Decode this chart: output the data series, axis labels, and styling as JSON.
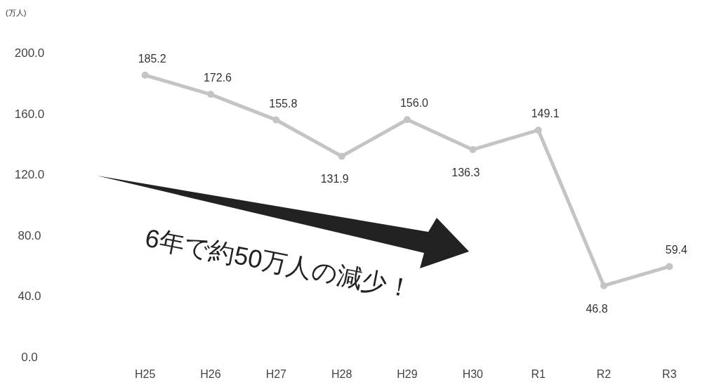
{
  "chart_data": {
    "type": "line",
    "ylabel": "(万人)",
    "categories": [
      "H25",
      "H26",
      "H27",
      "H28",
      "H29",
      "H30",
      "R1",
      "R2",
      "R3"
    ],
    "series": [
      {
        "color": "#c4c4c4",
        "values": [
          185.2,
          172.6,
          155.8,
          131.9,
          156.0,
          136.3,
          149.1,
          46.8,
          59.4
        ]
      }
    ],
    "value_labels": [
      "185.2",
      "172.6",
      "155.8",
      "131.9",
      "156.0",
      "136.3",
      "149.1",
      "46.8",
      "59.4"
    ],
    "ylim": [
      0,
      200
    ],
    "yticks": [
      {
        "value": 0,
        "label": "0.0"
      },
      {
        "value": 40,
        "label": "40.0"
      },
      {
        "value": 80,
        "label": "80.0"
      },
      {
        "value": 120,
        "label": "120.0"
      },
      {
        "value": 160,
        "label": "160.0"
      },
      {
        "value": 200,
        "label": "200.0"
      }
    ],
    "grid": false,
    "marker": "circle",
    "line_style": "solid",
    "annotations": [
      "6年で約50万人の減少！"
    ]
  }
}
